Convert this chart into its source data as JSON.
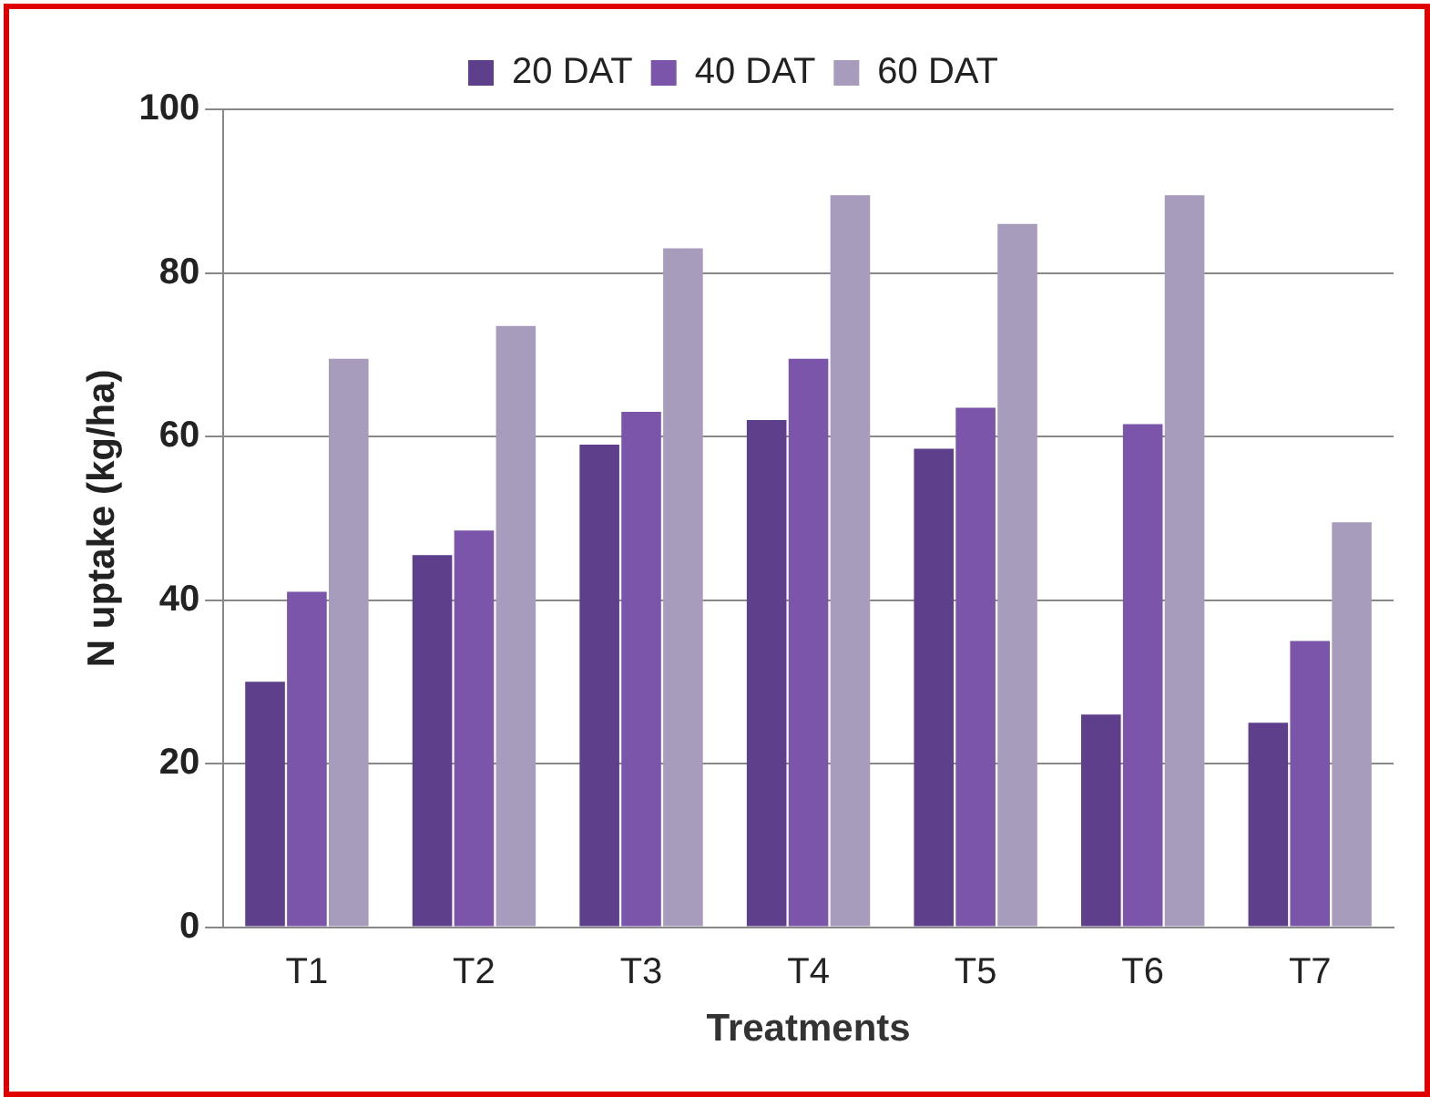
{
  "chart_data": {
    "type": "bar",
    "xlabel": "Treatments",
    "ylabel": "N uptake (kg/ha)",
    "categories": [
      "T1",
      "T2",
      "T3",
      "T4",
      "T5",
      "T6",
      "T7"
    ],
    "series": [
      {
        "name": "20 DAT",
        "color": "#5e3f8c",
        "values": [
          30,
          45.5,
          59,
          62,
          58.5,
          26,
          25
        ]
      },
      {
        "name": "40 DAT",
        "color": "#7a55aa",
        "values": [
          41,
          48.5,
          63,
          69.5,
          63.5,
          61.5,
          35
        ]
      },
      {
        "name": "60 DAT",
        "color": "#a89cbd",
        "values": [
          69.5,
          73.5,
          83,
          89.5,
          86,
          89.5,
          49.5
        ]
      }
    ],
    "ylim": [
      0,
      100
    ],
    "yticks": [
      0,
      20,
      40,
      60,
      80,
      100
    ],
    "grid": "y",
    "legend": "top"
  }
}
